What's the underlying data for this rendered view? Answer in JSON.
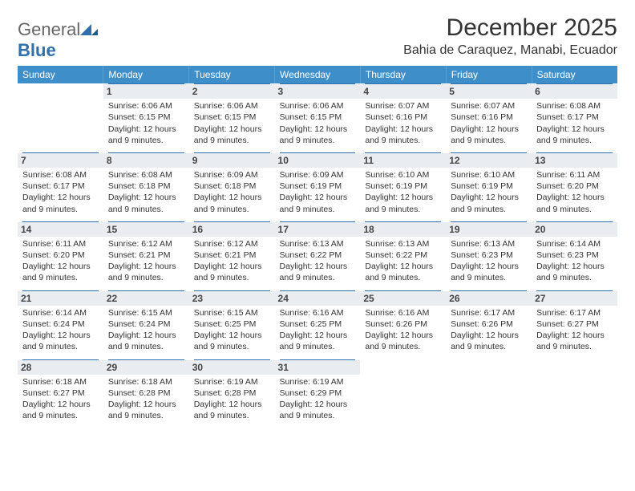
{
  "logo": {
    "part1": "General",
    "part2": "Blue"
  },
  "header": {
    "title": "December 2025",
    "location": "Bahia de Caraquez, Manabi, Ecuador"
  },
  "colors": {
    "headerBg": "#3d8ec9",
    "dayBg": "#e9edf1",
    "rule": "#2f6fab"
  },
  "daysOfWeek": [
    "Sunday",
    "Monday",
    "Tuesday",
    "Wednesday",
    "Thursday",
    "Friday",
    "Saturday"
  ],
  "firstDayOffset": 1,
  "daysInMonth": 31,
  "labels": {
    "sunrise": "Sunrise:",
    "sunset": "Sunset:",
    "daylight": "Daylight:"
  },
  "daylightCommon": "12 hours and 9 minutes.",
  "days": {
    "1": {
      "sunrise": "6:06 AM",
      "sunset": "6:15 PM"
    },
    "2": {
      "sunrise": "6:06 AM",
      "sunset": "6:15 PM"
    },
    "3": {
      "sunrise": "6:06 AM",
      "sunset": "6:15 PM"
    },
    "4": {
      "sunrise": "6:07 AM",
      "sunset": "6:16 PM"
    },
    "5": {
      "sunrise": "6:07 AM",
      "sunset": "6:16 PM"
    },
    "6": {
      "sunrise": "6:08 AM",
      "sunset": "6:17 PM"
    },
    "7": {
      "sunrise": "6:08 AM",
      "sunset": "6:17 PM"
    },
    "8": {
      "sunrise": "6:08 AM",
      "sunset": "6:18 PM"
    },
    "9": {
      "sunrise": "6:09 AM",
      "sunset": "6:18 PM"
    },
    "10": {
      "sunrise": "6:09 AM",
      "sunset": "6:19 PM"
    },
    "11": {
      "sunrise": "6:10 AM",
      "sunset": "6:19 PM"
    },
    "12": {
      "sunrise": "6:10 AM",
      "sunset": "6:19 PM"
    },
    "13": {
      "sunrise": "6:11 AM",
      "sunset": "6:20 PM"
    },
    "14": {
      "sunrise": "6:11 AM",
      "sunset": "6:20 PM"
    },
    "15": {
      "sunrise": "6:12 AM",
      "sunset": "6:21 PM"
    },
    "16": {
      "sunrise": "6:12 AM",
      "sunset": "6:21 PM"
    },
    "17": {
      "sunrise": "6:13 AM",
      "sunset": "6:22 PM"
    },
    "18": {
      "sunrise": "6:13 AM",
      "sunset": "6:22 PM"
    },
    "19": {
      "sunrise": "6:13 AM",
      "sunset": "6:23 PM"
    },
    "20": {
      "sunrise": "6:14 AM",
      "sunset": "6:23 PM"
    },
    "21": {
      "sunrise": "6:14 AM",
      "sunset": "6:24 PM"
    },
    "22": {
      "sunrise": "6:15 AM",
      "sunset": "6:24 PM"
    },
    "23": {
      "sunrise": "6:15 AM",
      "sunset": "6:25 PM"
    },
    "24": {
      "sunrise": "6:16 AM",
      "sunset": "6:25 PM"
    },
    "25": {
      "sunrise": "6:16 AM",
      "sunset": "6:26 PM"
    },
    "26": {
      "sunrise": "6:17 AM",
      "sunset": "6:26 PM"
    },
    "27": {
      "sunrise": "6:17 AM",
      "sunset": "6:27 PM"
    },
    "28": {
      "sunrise": "6:18 AM",
      "sunset": "6:27 PM"
    },
    "29": {
      "sunrise": "6:18 AM",
      "sunset": "6:28 PM"
    },
    "30": {
      "sunrise": "6:19 AM",
      "sunset": "6:28 PM"
    },
    "31": {
      "sunrise": "6:19 AM",
      "sunset": "6:29 PM"
    }
  }
}
